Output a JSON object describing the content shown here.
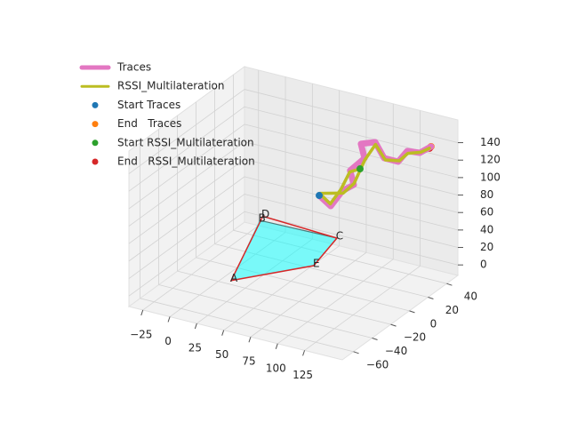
{
  "chart_data": {
    "type": "line3d",
    "xlim": [
      -38,
      160
    ],
    "ylim": [
      -72,
      52
    ],
    "zlim": [
      -12,
      166
    ],
    "xticks": [
      {
        "value": -25,
        "label": "−25"
      },
      0,
      25,
      50,
      75,
      100,
      125
    ],
    "yticks": [
      {
        "value": -60,
        "label": "−60"
      },
      {
        "value": -40,
        "label": "−40"
      },
      {
        "value": -20,
        "label": "−20"
      },
      0,
      20,
      40
    ],
    "zticks": [
      0,
      20,
      40,
      60,
      80,
      100,
      120,
      140
    ],
    "grid": true,
    "series": [
      {
        "name": "Traces",
        "color": "#e377c2",
        "x": [
          41.7,
          52.4,
          63.1,
          73.8,
          70.4,
          83.8,
          80.4,
          93.7,
          102.0,
          115.0,
          123.4,
          135.0,
          145.5
        ],
        "y": [
          40,
          40,
          40,
          40,
          40,
          40,
          40,
          40,
          40,
          40,
          40,
          40,
          40
        ],
        "z": [
          52.4,
          43.5,
          64.2,
          74.6,
          89.8,
          108.0,
          123.5,
          129.5,
          113.7,
          113.7,
          128.5,
          130.0,
          140.4
        ]
      },
      {
        "name": "RSSI_Multilateration",
        "color": "#bcbd22",
        "x": [
          79.6,
          70.0,
          62.0,
          52.0,
          42.0,
          64.0,
          74.0,
          84.0,
          94.0,
          103.0,
          116.0,
          124.0,
          136.0,
          144.0
        ],
        "y": [
          40,
          40,
          40,
          40,
          40,
          40,
          40,
          40,
          40,
          40,
          40,
          40,
          40,
          40
        ],
        "z": [
          94.6,
          88.0,
          66.0,
          46.0,
          55.0,
          62.0,
          76.0,
          106.0,
          127.0,
          112.0,
          115.0,
          126.0,
          131.0,
          138.0
        ]
      }
    ],
    "points": [
      {
        "name": "Start Traces",
        "color": "#1f77b4",
        "x": 41.7,
        "y": 40,
        "z": 52.4
      },
      {
        "name": "End   Traces",
        "color": "#ff7f0e",
        "x": 145.5,
        "y": 40,
        "z": 140.4
      },
      {
        "name": "Start RSSI_Multilateration",
        "color": "#2ca02c",
        "x": 79.6,
        "y": 40,
        "z": 94.6
      },
      {
        "name": "End   RSSI_Multilateration",
        "color": "#d62728",
        "x": 144.0,
        "y": 40,
        "z": 138.0
      }
    ],
    "anchors": {
      "labels": [
        "A",
        "B",
        "C",
        "D",
        "E"
      ],
      "x": [
        18,
        -19.6,
        51,
        -21,
        61
      ],
      "y": [
        -27,
        46.6,
        48.3,
        52,
        11.8
      ],
      "z": [
        0,
        0,
        0,
        0,
        0
      ],
      "edge_color": "#d62728",
      "fill_color": "#00ffff"
    },
    "legend": "upper left"
  }
}
